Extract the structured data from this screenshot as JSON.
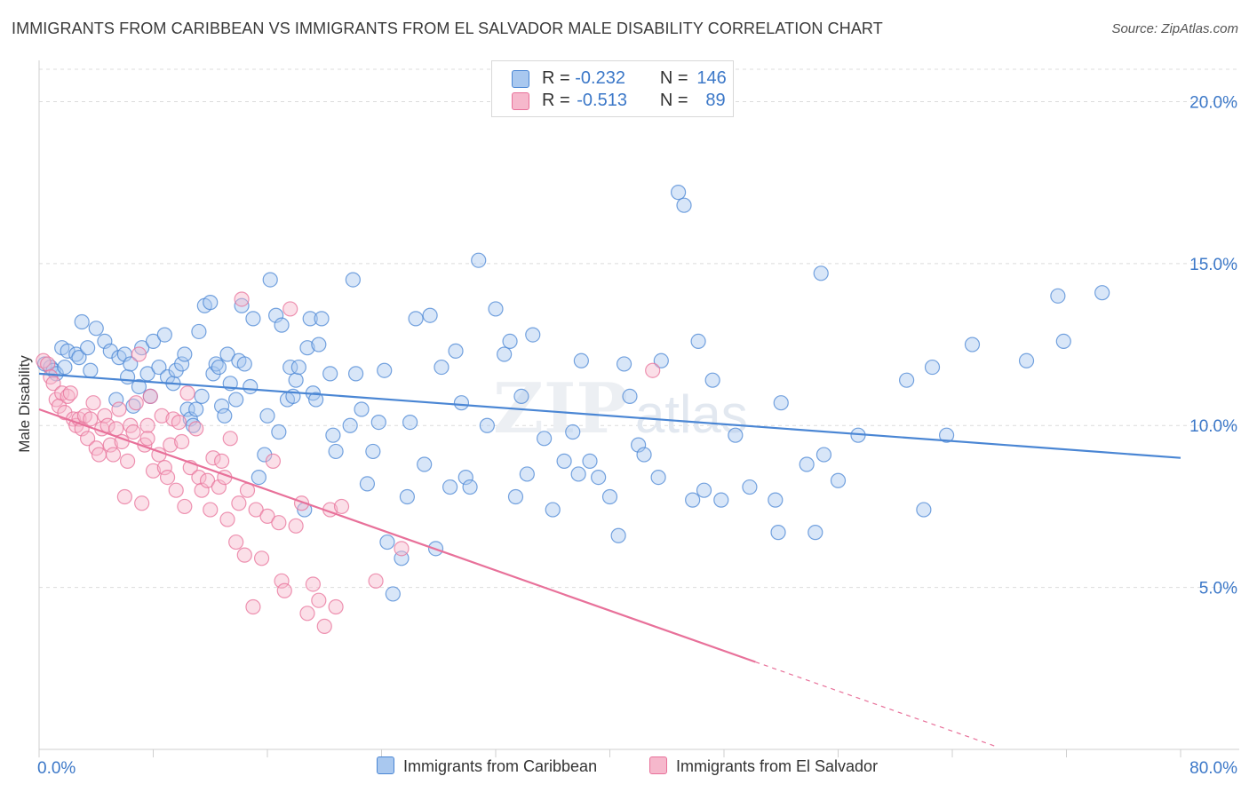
{
  "title": "IMMIGRANTS FROM CARIBBEAN VS IMMIGRANTS FROM EL SALVADOR MALE DISABILITY CORRELATION CHART",
  "source": "Source: ZipAtlas.com",
  "watermark": "ZIPatlas",
  "legend_top": [
    {
      "name": "Immigrants from Caribbean",
      "r_label": "R =",
      "r_value": "-0.232",
      "n_label": "N =",
      "n_value": "146",
      "color": "#a9c8ef"
    },
    {
      "name": "Immigrants from El Salvador",
      "r_label": "R =",
      "r_value": "-0.513",
      "n_label": "N =",
      "n_value": "89",
      "color": "#f6b8cc"
    }
  ],
  "chart_data": {
    "type": "scatter",
    "title": "IMMIGRANTS FROM CARIBBEAN VS IMMIGRANTS FROM EL SALVADOR MALE DISABILITY CORRELATION CHART",
    "xlabel": "",
    "ylabel": "Male Disability",
    "xlim": [
      0,
      80
    ],
    "ylim": [
      0,
      21
    ],
    "x_tick_labels": [
      "0.0%",
      "80.0%"
    ],
    "y_ticks": [
      5,
      10,
      15,
      20
    ],
    "y_tick_labels": [
      "5.0%",
      "10.0%",
      "15.0%",
      "20.0%"
    ],
    "grid": true,
    "legend_position": "bottom",
    "series": [
      {
        "name": "Immigrants from Caribbean",
        "color": "#4a86d4",
        "fill": "#a9c8ef",
        "trend": {
          "x1": 0,
          "y1": 11.6,
          "x2": 80,
          "y2": 9.0,
          "dashed_from": null
        },
        "points": [
          [
            0.4,
            11.9
          ],
          [
            0.8,
            11.8
          ],
          [
            1.0,
            11.7
          ],
          [
            1.2,
            11.6
          ],
          [
            1.6,
            12.4
          ],
          [
            1.8,
            11.8
          ],
          [
            2.0,
            12.3
          ],
          [
            2.6,
            12.2
          ],
          [
            2.8,
            12.1
          ],
          [
            3.0,
            13.2
          ],
          [
            3.4,
            12.4
          ],
          [
            3.6,
            11.7
          ],
          [
            4.0,
            13.0
          ],
          [
            4.6,
            12.6
          ],
          [
            5.0,
            12.3
          ],
          [
            5.4,
            10.8
          ],
          [
            5.6,
            12.1
          ],
          [
            6.0,
            12.2
          ],
          [
            6.2,
            11.5
          ],
          [
            6.4,
            11.9
          ],
          [
            6.6,
            10.6
          ],
          [
            7.0,
            11.2
          ],
          [
            7.2,
            12.4
          ],
          [
            7.6,
            11.6
          ],
          [
            7.8,
            10.9
          ],
          [
            8.0,
            12.6
          ],
          [
            8.4,
            11.8
          ],
          [
            8.8,
            12.8
          ],
          [
            9.0,
            11.5
          ],
          [
            9.4,
            11.3
          ],
          [
            9.6,
            11.7
          ],
          [
            10.0,
            11.9
          ],
          [
            10.2,
            12.2
          ],
          [
            10.4,
            10.5
          ],
          [
            10.6,
            10.2
          ],
          [
            10.8,
            10.0
          ],
          [
            11.0,
            10.5
          ],
          [
            11.2,
            12.9
          ],
          [
            11.4,
            10.9
          ],
          [
            11.6,
            13.7
          ],
          [
            12.0,
            13.8
          ],
          [
            12.2,
            11.6
          ],
          [
            12.4,
            11.9
          ],
          [
            12.6,
            11.8
          ],
          [
            12.8,
            10.6
          ],
          [
            13.0,
            10.3
          ],
          [
            13.2,
            12.2
          ],
          [
            13.4,
            11.3
          ],
          [
            13.8,
            10.8
          ],
          [
            14.0,
            12.0
          ],
          [
            14.2,
            13.7
          ],
          [
            14.4,
            11.9
          ],
          [
            14.8,
            11.2
          ],
          [
            15.0,
            13.3
          ],
          [
            15.4,
            8.4
          ],
          [
            15.8,
            9.1
          ],
          [
            16.0,
            10.3
          ],
          [
            16.2,
            14.5
          ],
          [
            16.6,
            13.4
          ],
          [
            16.8,
            9.8
          ],
          [
            17.0,
            13.1
          ],
          [
            17.4,
            10.8
          ],
          [
            17.6,
            11.8
          ],
          [
            17.8,
            10.9
          ],
          [
            18.0,
            11.4
          ],
          [
            18.2,
            11.8
          ],
          [
            18.6,
            7.4
          ],
          [
            18.8,
            12.4
          ],
          [
            19.0,
            13.3
          ],
          [
            19.2,
            11.0
          ],
          [
            19.4,
            10.8
          ],
          [
            19.6,
            12.5
          ],
          [
            19.8,
            13.3
          ],
          [
            20.4,
            11.6
          ],
          [
            20.6,
            9.7
          ],
          [
            20.8,
            9.2
          ],
          [
            21.8,
            10.0
          ],
          [
            22.0,
            14.5
          ],
          [
            22.2,
            11.6
          ],
          [
            22.6,
            10.5
          ],
          [
            23.0,
            8.2
          ],
          [
            23.4,
            9.2
          ],
          [
            23.8,
            10.1
          ],
          [
            24.2,
            11.7
          ],
          [
            24.4,
            6.4
          ],
          [
            24.8,
            4.8
          ],
          [
            25.4,
            5.9
          ],
          [
            25.8,
            7.8
          ],
          [
            26.0,
            10.1
          ],
          [
            26.4,
            13.3
          ],
          [
            27.0,
            8.8
          ],
          [
            27.4,
            13.4
          ],
          [
            27.8,
            6.2
          ],
          [
            28.2,
            11.8
          ],
          [
            28.8,
            8.1
          ],
          [
            29.2,
            12.3
          ],
          [
            29.6,
            10.7
          ],
          [
            29.9,
            8.4
          ],
          [
            30.2,
            8.1
          ],
          [
            30.8,
            15.1
          ],
          [
            31.4,
            10.0
          ],
          [
            32.0,
            13.6
          ],
          [
            32.6,
            12.2
          ],
          [
            33.0,
            12.6
          ],
          [
            33.4,
            7.8
          ],
          [
            33.8,
            10.9
          ],
          [
            34.2,
            8.5
          ],
          [
            34.6,
            12.8
          ],
          [
            35.4,
            9.6
          ],
          [
            36.0,
            7.4
          ],
          [
            36.8,
            8.9
          ],
          [
            37.4,
            9.8
          ],
          [
            37.8,
            8.5
          ],
          [
            38.0,
            12.0
          ],
          [
            38.6,
            8.9
          ],
          [
            39.2,
            8.4
          ],
          [
            40.0,
            7.8
          ],
          [
            40.6,
            6.6
          ],
          [
            41.0,
            11.9
          ],
          [
            41.4,
            10.9
          ],
          [
            42.0,
            9.4
          ],
          [
            42.4,
            9.1
          ],
          [
            43.4,
            8.4
          ],
          [
            43.6,
            12.0
          ],
          [
            44.8,
            17.2
          ],
          [
            45.2,
            16.8
          ],
          [
            45.8,
            7.7
          ],
          [
            46.2,
            12.6
          ],
          [
            46.6,
            8.0
          ],
          [
            47.2,
            11.4
          ],
          [
            47.8,
            7.7
          ],
          [
            48.8,
            9.7
          ],
          [
            49.8,
            8.1
          ],
          [
            51.6,
            7.7
          ],
          [
            51.8,
            6.7
          ],
          [
            52.0,
            10.7
          ],
          [
            53.8,
            8.8
          ],
          [
            54.4,
            6.7
          ],
          [
            54.8,
            14.7
          ],
          [
            55.0,
            9.1
          ],
          [
            56.0,
            8.3
          ],
          [
            57.4,
            9.7
          ],
          [
            60.8,
            11.4
          ],
          [
            62.0,
            7.4
          ],
          [
            62.6,
            11.8
          ],
          [
            63.6,
            9.7
          ],
          [
            65.4,
            12.5
          ],
          [
            69.2,
            12.0
          ],
          [
            71.4,
            14.0
          ],
          [
            71.8,
            12.6
          ],
          [
            74.5,
            14.1
          ]
        ]
      },
      {
        "name": "Immigrants from El Salvador",
        "color": "#e8719a",
        "fill": "#f6b8cc",
        "trend": {
          "x1": 0,
          "y1": 10.5,
          "x2": 50.2,
          "y2": 2.7,
          "dashed_to_x": 67,
          "dashed_to_y": 0.1
        },
        "points": [
          [
            0.3,
            12.0
          ],
          [
            0.6,
            11.9
          ],
          [
            0.8,
            11.5
          ],
          [
            1.0,
            11.3
          ],
          [
            1.2,
            10.8
          ],
          [
            1.4,
            10.6
          ],
          [
            1.6,
            11.0
          ],
          [
            1.8,
            10.4
          ],
          [
            2.0,
            10.9
          ],
          [
            2.2,
            11.0
          ],
          [
            2.4,
            10.2
          ],
          [
            2.6,
            10.0
          ],
          [
            2.8,
            10.2
          ],
          [
            3.0,
            9.9
          ],
          [
            3.2,
            10.3
          ],
          [
            3.4,
            9.6
          ],
          [
            3.6,
            10.2
          ],
          [
            3.8,
            10.7
          ],
          [
            4.0,
            9.3
          ],
          [
            4.2,
            9.1
          ],
          [
            4.4,
            9.9
          ],
          [
            4.6,
            10.3
          ],
          [
            4.8,
            10.0
          ],
          [
            5.0,
            9.4
          ],
          [
            5.2,
            9.1
          ],
          [
            5.4,
            9.9
          ],
          [
            5.6,
            10.5
          ],
          [
            5.8,
            9.5
          ],
          [
            6.0,
            7.8
          ],
          [
            6.2,
            8.9
          ],
          [
            6.4,
            10.0
          ],
          [
            6.6,
            9.8
          ],
          [
            6.8,
            10.7
          ],
          [
            7.0,
            12.2
          ],
          [
            7.2,
            7.6
          ],
          [
            7.4,
            9.4
          ],
          [
            7.6,
            10.0
          ],
          [
            7.8,
            10.9
          ],
          [
            8.0,
            8.6
          ],
          [
            8.4,
            9.1
          ],
          [
            8.6,
            10.3
          ],
          [
            8.8,
            8.7
          ],
          [
            9.0,
            8.4
          ],
          [
            9.2,
            9.4
          ],
          [
            9.4,
            10.2
          ],
          [
            9.6,
            8.0
          ],
          [
            9.8,
            10.1
          ],
          [
            10.0,
            9.5
          ],
          [
            10.2,
            7.5
          ],
          [
            10.6,
            8.7
          ],
          [
            11.0,
            9.9
          ],
          [
            11.2,
            8.4
          ],
          [
            11.4,
            8.0
          ],
          [
            11.8,
            8.3
          ],
          [
            12.0,
            7.4
          ],
          [
            12.2,
            9.0
          ],
          [
            12.6,
            8.1
          ],
          [
            12.8,
            8.9
          ],
          [
            13.0,
            8.4
          ],
          [
            13.2,
            7.1
          ],
          [
            13.4,
            9.6
          ],
          [
            13.8,
            6.4
          ],
          [
            14.0,
            7.6
          ],
          [
            14.4,
            6.0
          ],
          [
            14.6,
            8.0
          ],
          [
            15.0,
            4.4
          ],
          [
            15.2,
            7.4
          ],
          [
            15.6,
            5.9
          ],
          [
            16.0,
            7.2
          ],
          [
            16.4,
            8.9
          ],
          [
            16.8,
            7.0
          ],
          [
            17.0,
            5.2
          ],
          [
            17.2,
            4.9
          ],
          [
            17.6,
            13.6
          ],
          [
            18.0,
            6.9
          ],
          [
            18.4,
            7.6
          ],
          [
            18.8,
            4.2
          ],
          [
            19.2,
            5.1
          ],
          [
            19.6,
            4.6
          ],
          [
            20.0,
            3.8
          ],
          [
            20.4,
            7.4
          ],
          [
            20.8,
            4.4
          ],
          [
            21.2,
            7.5
          ],
          [
            23.6,
            5.2
          ],
          [
            25.4,
            6.2
          ],
          [
            14.2,
            13.9
          ],
          [
            10.4,
            11.0
          ],
          [
            7.6,
            9.6
          ],
          [
            43.0,
            11.7
          ]
        ]
      }
    ]
  }
}
